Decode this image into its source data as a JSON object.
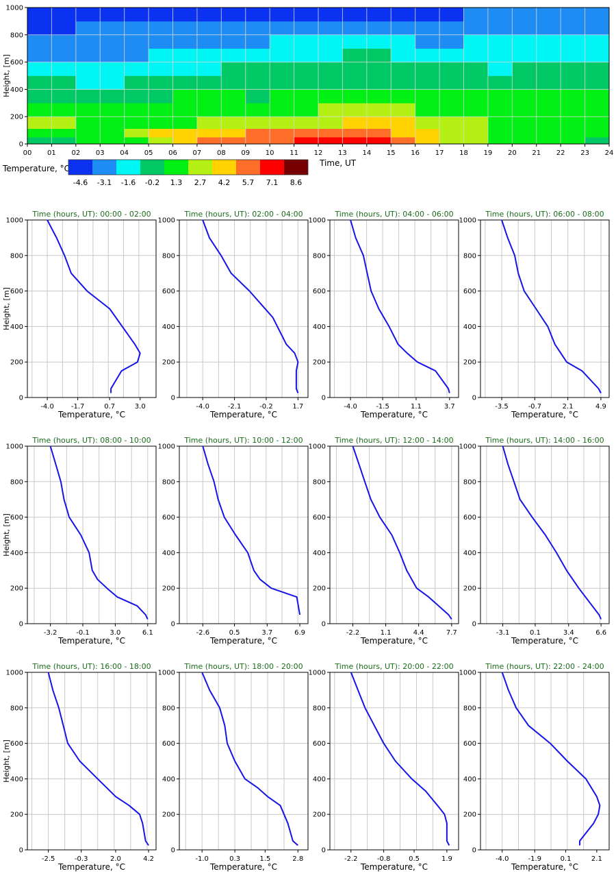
{
  "chart_data": [
    {
      "type": "heatmap",
      "xlabel": "Time, UT",
      "ylabel": "Height, [m]",
      "x_ticks": [
        "00",
        "01",
        "02",
        "03",
        "04",
        "05",
        "06",
        "07",
        "08",
        "09",
        "10",
        "11",
        "12",
        "13",
        "14",
        "15",
        "16",
        "17",
        "18",
        "19",
        "20",
        "21",
        "22",
        "23",
        "24"
      ],
      "y_ticks": [
        0,
        200,
        400,
        600,
        800,
        1000
      ],
      "xlim": [
        0,
        24
      ],
      "ylim": [
        0,
        1000
      ],
      "grid": true,
      "colorbar": {
        "label": "Temperature, °C",
        "values": [
          "-4.6",
          "-3.1",
          "-1.6",
          "-0.2",
          "1.3",
          "2.7",
          "4.2",
          "5.7",
          "7.1",
          "8.6"
        ],
        "colors": [
          "#0a32f0",
          "#1e8cf5",
          "#00f5f5",
          "#00c864",
          "#00f014",
          "#b4f014",
          "#ffd200",
          "#ff6e28",
          "#ff0000",
          "#780000"
        ]
      },
      "heights": [
        25,
        75,
        150,
        250,
        350,
        450,
        550,
        650,
        750,
        850,
        950
      ],
      "hours": [
        0.5,
        1.5,
        2.5,
        3.5,
        4.5,
        5.5,
        6.5,
        7.5,
        8.5,
        9.5,
        10.5,
        11.5,
        12.5,
        13.5,
        14.5,
        15.5,
        16.5,
        17.5,
        18.5,
        19.5,
        20.5,
        21.5,
        22.5,
        23.5
      ],
      "levels": [
        [
          3,
          3,
          4,
          4,
          4,
          5,
          6,
          7,
          7,
          7,
          7,
          8,
          8,
          8,
          8,
          7,
          6,
          5,
          5,
          4,
          4,
          4,
          4,
          3
        ],
        [
          4,
          4,
          4,
          4,
          5,
          6,
          6,
          6,
          6,
          7,
          7,
          7,
          7,
          7,
          7,
          6,
          6,
          5,
          5,
          4,
          4,
          4,
          4,
          4
        ],
        [
          5,
          5,
          4,
          4,
          4,
          4,
          4,
          5,
          5,
          5,
          5,
          5,
          5,
          6,
          6,
          6,
          5,
          5,
          5,
          4,
          4,
          4,
          4,
          4
        ],
        [
          4,
          4,
          4,
          4,
          4,
          4,
          4,
          4,
          4,
          4,
          4,
          4,
          5,
          5,
          5,
          5,
          4,
          4,
          4,
          4,
          4,
          4,
          4,
          4
        ],
        [
          3,
          3,
          3,
          3,
          3,
          3,
          4,
          4,
          4,
          3,
          4,
          4,
          4,
          4,
          4,
          4,
          4,
          4,
          4,
          4,
          4,
          4,
          4,
          4
        ],
        [
          3,
          3,
          2,
          2,
          3,
          3,
          3,
          3,
          3,
          3,
          3,
          3,
          3,
          3,
          3,
          3,
          3,
          3,
          3,
          3,
          3,
          3,
          3,
          3
        ],
        [
          2,
          2,
          2,
          2,
          2,
          2,
          2,
          2,
          3,
          3,
          3,
          3,
          3,
          3,
          3,
          3,
          3,
          3,
          3,
          2,
          3,
          3,
          3,
          3
        ],
        [
          1,
          1,
          1,
          1,
          1,
          2,
          2,
          2,
          2,
          2,
          2,
          2,
          2,
          3,
          3,
          2,
          2,
          2,
          2,
          2,
          2,
          2,
          2,
          2
        ],
        [
          1,
          1,
          1,
          1,
          1,
          1,
          1,
          1,
          1,
          1,
          2,
          2,
          2,
          2,
          2,
          2,
          1,
          1,
          2,
          2,
          2,
          2,
          2,
          2
        ],
        [
          0,
          0,
          1,
          1,
          1,
          1,
          1,
          1,
          1,
          1,
          1,
          1,
          1,
          1,
          1,
          1,
          1,
          1,
          1,
          1,
          1,
          1,
          1,
          1
        ],
        [
          0,
          0,
          0,
          0,
          0,
          0,
          0,
          0,
          0,
          0,
          0,
          0,
          0,
          0,
          0,
          0,
          0,
          0,
          1,
          1,
          1,
          1,
          1,
          1
        ]
      ]
    },
    {
      "type": "line",
      "title": "Time (hours, UT): 00:00 - 02:00",
      "xlabel": "Temperature, °C",
      "ylabel": "Height, [m]",
      "x_tick_labels": [
        "-4.0",
        "-1.7",
        "0.7",
        "3.0"
      ],
      "xlim": [
        -5.5,
        4.2
      ],
      "ylim": [
        0,
        1000
      ],
      "y_ticks": [
        0,
        200,
        400,
        600,
        800,
        1000
      ],
      "grid": true,
      "series": [
        {
          "x": [
            -4.0,
            -3.3,
            -2.7,
            -2.2,
            -1.0,
            0.7,
            2.6,
            3.0,
            2.8,
            1.6,
            0.8,
            0.8
          ],
          "y": [
            1000,
            900,
            800,
            700,
            600,
            500,
            300,
            250,
            200,
            150,
            50,
            25
          ],
          "color": "#1414e6"
        }
      ]
    },
    {
      "type": "line",
      "title": "Time (hours, UT): 02:00 - 04:00",
      "xlabel": "Temperature, °C",
      "ylabel": "Height, [m]",
      "x_tick_labels": [
        "-4.0",
        "-2.1",
        "-0.2",
        "1.7"
      ],
      "xlim": [
        -5.4,
        2.3
      ],
      "ylim": [
        0,
        1000
      ],
      "y_ticks": [
        0,
        200,
        400,
        600,
        800,
        1000
      ],
      "grid": true,
      "series": [
        {
          "x": [
            -4.0,
            -3.6,
            -2.9,
            -2.3,
            -1.2,
            0.2,
            1.0,
            1.5,
            1.7,
            1.6,
            1.6,
            1.7
          ],
          "y": [
            1000,
            900,
            800,
            700,
            600,
            450,
            300,
            250,
            200,
            150,
            50,
            25
          ],
          "color": "#1414e6"
        }
      ]
    },
    {
      "type": "line",
      "title": "Time (hours, UT): 04:00 - 06:00",
      "xlabel": "Temperature, °C",
      "ylabel": "Height, [m]",
      "x_tick_labels": [
        "-4.0",
        "-1.5",
        "1.1",
        "3.7"
      ],
      "xlim": [
        -5.6,
        4.4
      ],
      "ylim": [
        0,
        1000
      ],
      "y_ticks": [
        0,
        200,
        400,
        600,
        800,
        1000
      ],
      "grid": true,
      "series": [
        {
          "x": [
            -4.0,
            -3.6,
            -3.0,
            -2.7,
            -2.4,
            -1.8,
            -1.0,
            -0.3,
            0.4,
            1.2,
            2.6,
            3.6,
            3.7
          ],
          "y": [
            1000,
            900,
            800,
            700,
            600,
            500,
            400,
            300,
            250,
            200,
            150,
            50,
            25
          ],
          "color": "#1414e6"
        }
      ]
    },
    {
      "type": "line",
      "title": "Time (hours, UT): 06:00 - 08:00",
      "xlabel": "Temperature, °C",
      "ylabel": "Height, [m]",
      "x_tick_labels": [
        "-3.5",
        "-0.7",
        "2.1",
        "4.9"
      ],
      "xlim": [
        -5.3,
        5.6
      ],
      "ylim": [
        0,
        1000
      ],
      "y_ticks": [
        0,
        200,
        400,
        600,
        800,
        1000
      ],
      "grid": true,
      "series": [
        {
          "x": [
            -3.5,
            -3.0,
            -2.4,
            -2.1,
            -1.6,
            -0.6,
            0.4,
            1.0,
            2.0,
            3.3,
            4.7,
            4.9
          ],
          "y": [
            1000,
            900,
            800,
            700,
            600,
            500,
            400,
            300,
            200,
            150,
            50,
            25
          ],
          "color": "#1414e6"
        }
      ]
    },
    {
      "type": "line",
      "title": "Time (hours, UT): 08:00 - 10:00",
      "xlabel": "Temperature, °C",
      "ylabel": "Height, [m]",
      "x_tick_labels": [
        "-3.2",
        "-0.1",
        "3.0",
        "6.1"
      ],
      "xlim": [
        -5.4,
        6.9
      ],
      "ylim": [
        0,
        1000
      ],
      "y_ticks": [
        0,
        200,
        400,
        600,
        800,
        1000
      ],
      "grid": true,
      "series": [
        {
          "x": [
            -3.2,
            -2.7,
            -2.2,
            -1.9,
            -1.4,
            -0.3,
            0.5,
            0.8,
            1.3,
            2.2,
            3.2,
            5.1,
            5.9,
            6.1
          ],
          "y": [
            1000,
            900,
            800,
            700,
            600,
            500,
            400,
            300,
            250,
            200,
            150,
            100,
            50,
            25
          ],
          "color": "#1414e6"
        }
      ]
    },
    {
      "type": "line",
      "title": "Time (hours, UT): 10:00 - 12:00",
      "xlabel": "Temperature, °C",
      "ylabel": "Height, [m]",
      "x_tick_labels": [
        "-2.6",
        "0.5",
        "3.7",
        "6.9"
      ],
      "xlim": [
        -4.9,
        7.7
      ],
      "ylim": [
        0,
        1000
      ],
      "y_ticks": [
        0,
        200,
        400,
        600,
        800,
        1000
      ],
      "grid": true,
      "series": [
        {
          "x": [
            -2.6,
            -2.1,
            -1.5,
            -1.1,
            -0.5,
            0.6,
            1.8,
            2.4,
            3.0,
            4.1,
            6.6,
            6.9
          ],
          "y": [
            1000,
            900,
            800,
            700,
            600,
            500,
            400,
            300,
            250,
            200,
            150,
            50
          ],
          "color": "#1414e6"
        }
      ]
    },
    {
      "type": "line",
      "title": "Time (hours, UT): 12:00 - 14:00",
      "xlabel": "Temperature, °C",
      "ylabel": "Height, [m]",
      "x_tick_labels": [
        "-2.2",
        "1.1",
        "4.4",
        "7.7"
      ],
      "xlim": [
        -4.5,
        8.4
      ],
      "ylim": [
        0,
        1000
      ],
      "y_ticks": [
        0,
        200,
        400,
        600,
        800,
        1000
      ],
      "grid": true,
      "series": [
        {
          "x": [
            -2.2,
            -1.6,
            -1.0,
            -0.4,
            0.5,
            1.7,
            2.5,
            3.2,
            4.2,
            5.4,
            7.4,
            7.7
          ],
          "y": [
            1000,
            900,
            800,
            700,
            600,
            500,
            400,
            300,
            200,
            150,
            50,
            25
          ],
          "color": "#1414e6"
        }
      ]
    },
    {
      "type": "line",
      "title": "Time (hours, UT): 14:00 - 16:00",
      "xlabel": "Temperature, °C",
      "ylabel": "Height, [m]",
      "x_tick_labels": [
        "-3.1",
        "0.1",
        "3.4",
        "6.6"
      ],
      "xlim": [
        -5.3,
        7.4
      ],
      "ylim": [
        0,
        1000
      ],
      "y_ticks": [
        0,
        200,
        400,
        600,
        800,
        1000
      ],
      "grid": true,
      "series": [
        {
          "x": [
            -3.1,
            -2.6,
            -2.0,
            -1.4,
            -0.2,
            1.1,
            2.2,
            3.2,
            4.4,
            6.4,
            6.6
          ],
          "y": [
            1000,
            900,
            800,
            700,
            600,
            500,
            400,
            300,
            200,
            50,
            25
          ],
          "color": "#1414e6"
        }
      ]
    },
    {
      "type": "line",
      "title": "Time (hours, UT): 16:00 - 18:00",
      "xlabel": "Temperature, °C",
      "ylabel": "Height, [m]",
      "x_tick_labels": [
        "-2.5",
        "-0.3",
        "2.0",
        "4.2"
      ],
      "xlim": [
        -3.9,
        4.7
      ],
      "ylim": [
        0,
        1000
      ],
      "y_ticks": [
        0,
        200,
        400,
        600,
        800,
        1000
      ],
      "grid": true,
      "series": [
        {
          "x": [
            -2.5,
            -2.2,
            -1.8,
            -1.5,
            -1.2,
            -0.4,
            0.8,
            2.0,
            2.9,
            3.6,
            3.8,
            4.0,
            4.2
          ],
          "y": [
            1000,
            900,
            800,
            700,
            600,
            500,
            400,
            300,
            250,
            200,
            150,
            50,
            25
          ],
          "color": "#1414e6"
        }
      ]
    },
    {
      "type": "line",
      "title": "Time (hours, UT): 18:00 - 20:00",
      "xlabel": "Temperature, °C",
      "ylabel": "Height, [m]",
      "x_tick_labels": [
        "-1.0",
        "0.3",
        "1.5",
        "2.8"
      ],
      "xlim": [
        -1.9,
        3.2
      ],
      "ylim": [
        0,
        1000
      ],
      "y_ticks": [
        0,
        200,
        400,
        600,
        800,
        1000
      ],
      "grid": true,
      "series": [
        {
          "x": [
            -1.0,
            -0.7,
            -0.3,
            -0.1,
            0.0,
            0.3,
            0.7,
            1.2,
            1.6,
            2.1,
            2.4,
            2.6,
            2.8
          ],
          "y": [
            1000,
            900,
            800,
            700,
            600,
            500,
            400,
            350,
            300,
            250,
            150,
            50,
            25
          ],
          "color": "#1414e6"
        }
      ]
    },
    {
      "type": "line",
      "title": "Time (hours, UT): 20:00 - 22:00",
      "xlabel": "Temperature, °C",
      "ylabel": "Height, [m]",
      "x_tick_labels": [
        "-2.2",
        "-0.8",
        "0.5",
        "1.9"
      ],
      "xlim": [
        -3.1,
        2.4
      ],
      "ylim": [
        0,
        1000
      ],
      "y_ticks": [
        0,
        200,
        400,
        600,
        800,
        1000
      ],
      "grid": true,
      "series": [
        {
          "x": [
            -2.2,
            -1.9,
            -1.6,
            -1.2,
            -0.8,
            -0.3,
            0.4,
            1.0,
            1.5,
            1.8,
            1.9,
            1.9,
            1.9,
            2.0
          ],
          "y": [
            1000,
            900,
            800,
            700,
            600,
            500,
            400,
            330,
            250,
            200,
            150,
            100,
            50,
            25
          ],
          "color": "#1414e6"
        }
      ]
    },
    {
      "type": "line",
      "title": "Time (hours, UT): 22:00 - 24:00",
      "xlabel": "Temperature, °C",
      "ylabel": "Height, [m]",
      "x_tick_labels": [
        "-4.0",
        "-1.9",
        "0.1",
        "2.1"
      ],
      "xlim": [
        -5.4,
        2.9
      ],
      "ylim": [
        0,
        1000
      ],
      "y_ticks": [
        0,
        200,
        400,
        600,
        800,
        1000
      ],
      "grid": true,
      "series": [
        {
          "x": [
            -4.0,
            -3.6,
            -3.1,
            -2.3,
            -0.9,
            0.2,
            1.4,
            2.1,
            2.3,
            2.2,
            1.9,
            1.0,
            1.0
          ],
          "y": [
            1000,
            900,
            800,
            700,
            600,
            500,
            400,
            300,
            250,
            200,
            150,
            50,
            25
          ],
          "color": "#1414e6"
        }
      ]
    }
  ]
}
